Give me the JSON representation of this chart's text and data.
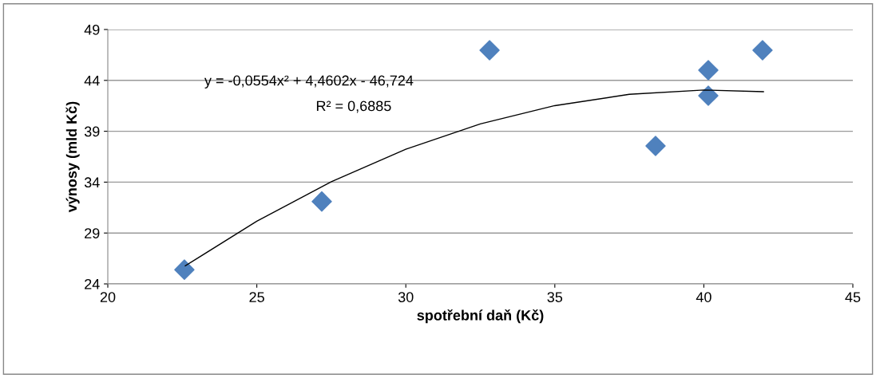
{
  "chart_data": {
    "type": "scatter",
    "xlabel": "spotřební daň (Kč)",
    "ylabel": "výnosy (mld Kč)",
    "x": [
      22.57,
      27.18,
      32.81,
      38.38,
      40.15,
      40.15,
      41.97
    ],
    "series": [
      {
        "color": "#4f81bd",
        "marker": "diamond",
        "values": [
          25.4,
          32.1,
          46.96,
          37.56,
          45.0,
          42.5,
          46.96
        ]
      },
      {
        "type": "line",
        "color": "#000000",
        "marker": "none",
        "x": [
          22.6,
          25,
          27.5,
          30,
          32.5,
          35,
          37.5,
          40,
          42
        ],
        "values": [
          25.78,
          30.16,
          34.04,
          37.23,
          39.72,
          41.52,
          42.63,
          43.05,
          42.89
        ]
      }
    ],
    "annotations": [
      "y = -0,0554x² + 4,4602x - 46,724",
      "R² = 0,6885"
    ],
    "xlim": [
      20,
      45
    ],
    "xticks": [
      20,
      25,
      30,
      35,
      40,
      45
    ],
    "ylim": [
      24,
      49
    ],
    "yticks": [
      24,
      29,
      34,
      39,
      44,
      49
    ],
    "grid": "y"
  }
}
